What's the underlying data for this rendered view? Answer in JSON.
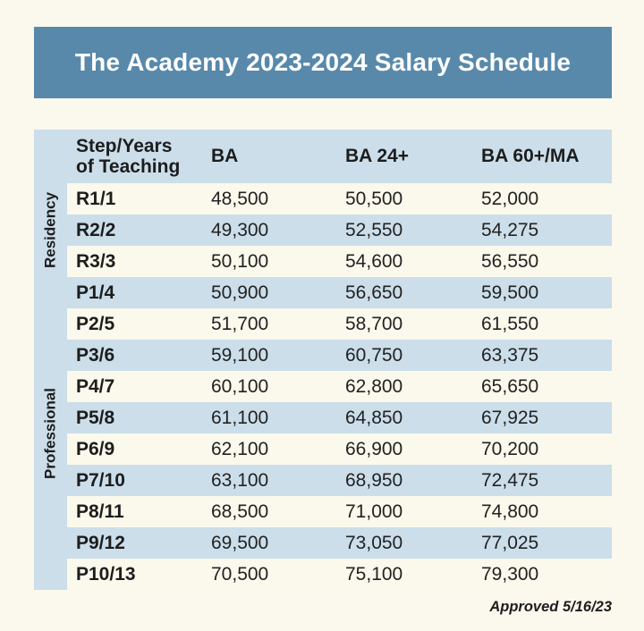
{
  "colors": {
    "banner": "#5889aa",
    "row_blue": "#cbdeea",
    "row_cream": "#fbf8ec",
    "page_bg": "#fbf8ee",
    "text": "#1d1d1d",
    "title_text": "#ffffff"
  },
  "banner": {
    "title": "The Academy 2023-2024 Salary Schedule"
  },
  "table": {
    "header": {
      "step_line1": "Step/Years",
      "step_line2": "of Teaching",
      "columns": [
        "BA",
        "BA 24+",
        "BA 60+/MA"
      ]
    },
    "groups": {
      "residency": "Residency",
      "professional": "Professional"
    },
    "rows": [
      {
        "step": "R1/1",
        "ba": "48,500",
        "ba24": "50,500",
        "ba60ma": "52,000"
      },
      {
        "step": "R2/2",
        "ba": "49,300",
        "ba24": "52,550",
        "ba60ma": "54,275"
      },
      {
        "step": "R3/3",
        "ba": "50,100",
        "ba24": "54,600",
        "ba60ma": "56,550"
      },
      {
        "step": "P1/4",
        "ba": "50,900",
        "ba24": "56,650",
        "ba60ma": "59,500"
      },
      {
        "step": "P2/5",
        "ba": "51,700",
        "ba24": "58,700",
        "ba60ma": "61,550"
      },
      {
        "step": "P3/6",
        "ba": "59,100",
        "ba24": "60,750",
        "ba60ma": "63,375"
      },
      {
        "step": "P4/7",
        "ba": "60,100",
        "ba24": "62,800",
        "ba60ma": "65,650"
      },
      {
        "step": "P5/8",
        "ba": "61,100",
        "ba24": "64,850",
        "ba60ma": "67,925"
      },
      {
        "step": "P6/9",
        "ba": "62,100",
        "ba24": "66,900",
        "ba60ma": "70,200"
      },
      {
        "step": "P7/10",
        "ba": "63,100",
        "ba24": "68,950",
        "ba60ma": "72,475"
      },
      {
        "step": "P8/11",
        "ba": "68,500",
        "ba24": "71,000",
        "ba60ma": "74,800"
      },
      {
        "step": "P9/12",
        "ba": "69,500",
        "ba24": "73,050",
        "ba60ma": "77,025"
      },
      {
        "step": "P10/13",
        "ba": "70,500",
        "ba24": "75,100",
        "ba60ma": "79,300"
      }
    ]
  },
  "footer": {
    "approved": "Approved 5/16/23"
  }
}
